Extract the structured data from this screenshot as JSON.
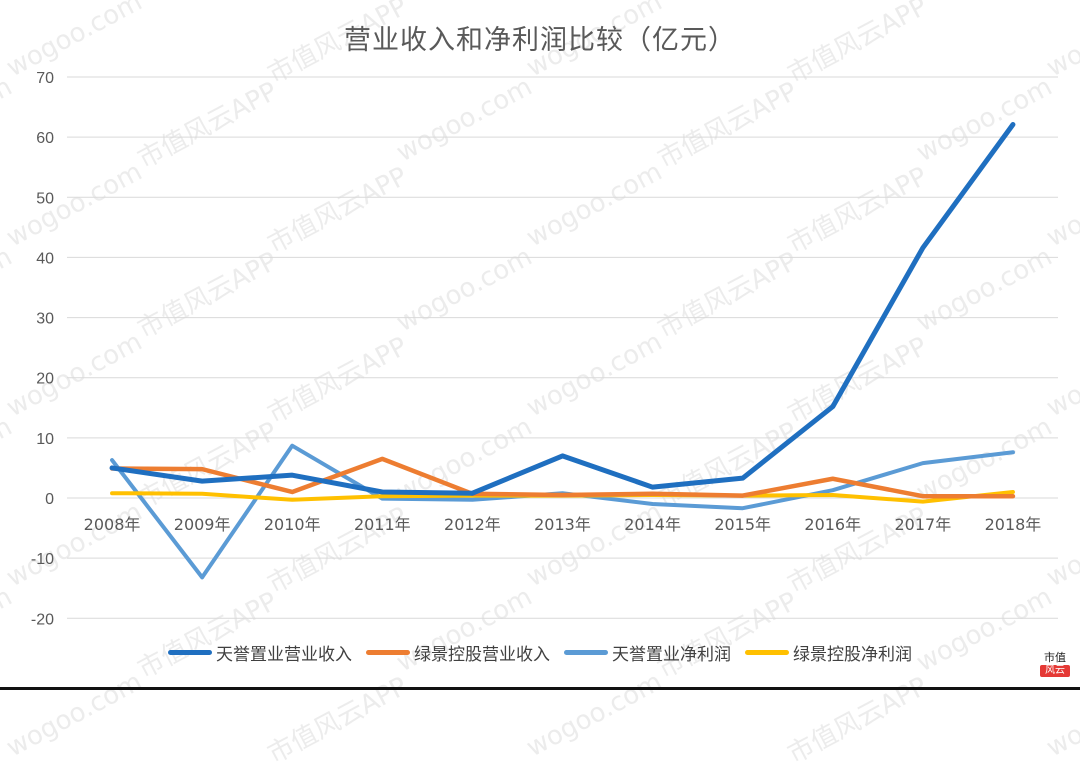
{
  "title": "营业收入和净利润比较（亿元）",
  "watermarks": [
    "wogoo.com",
    "市值风云APP"
  ],
  "logo": {
    "top": "市值",
    "bottom": "风云"
  },
  "colors": {
    "tianyu_revenue": "#1F6FC0",
    "lvjing_revenue": "#ED7D31",
    "tianyu_profit": "#5B9BD5",
    "lvjing_profit": "#FFC000",
    "grid": "#d9d9d9",
    "axis_text": "#595959"
  },
  "chart_data": {
    "type": "line",
    "title": "营业收入和净利润比较（亿元）",
    "xlabel": "",
    "ylabel": "",
    "ylim": [
      -20,
      70
    ],
    "yticks": [
      70,
      60,
      50,
      40,
      30,
      20,
      10,
      0,
      -10,
      -20
    ],
    "grid": true,
    "legend_position": "bottom",
    "categories": [
      "2008年",
      "2009年",
      "2010年",
      "2011年",
      "2012年",
      "2013年",
      "2014年",
      "2015年",
      "2016年",
      "2017年",
      "2018年"
    ],
    "series": [
      {
        "name": "天誉置业营业收入",
        "color": "#1F6FC0",
        "values": [
          5.0,
          2.8,
          3.8,
          1.0,
          0.8,
          7.0,
          1.8,
          3.3,
          15.2,
          41.6,
          62.1
        ]
      },
      {
        "name": "绿景控股营业收入",
        "color": "#ED7D31",
        "values": [
          4.9,
          4.8,
          1.0,
          6.5,
          0.7,
          0.5,
          0.7,
          0.4,
          3.2,
          0.3,
          0.3
        ]
      },
      {
        "name": "天誉置业净利润",
        "color": "#5B9BD5",
        "values": [
          6.3,
          -13.2,
          8.7,
          -0.1,
          -0.3,
          0.8,
          -1.0,
          -1.7,
          1.3,
          5.8,
          7.6
        ]
      },
      {
        "name": "绿景控股净利润",
        "color": "#FFC000",
        "values": [
          0.8,
          0.7,
          -0.3,
          0.3,
          0.4,
          0.4,
          0.5,
          0.4,
          0.5,
          -0.6,
          1.0
        ]
      }
    ]
  }
}
